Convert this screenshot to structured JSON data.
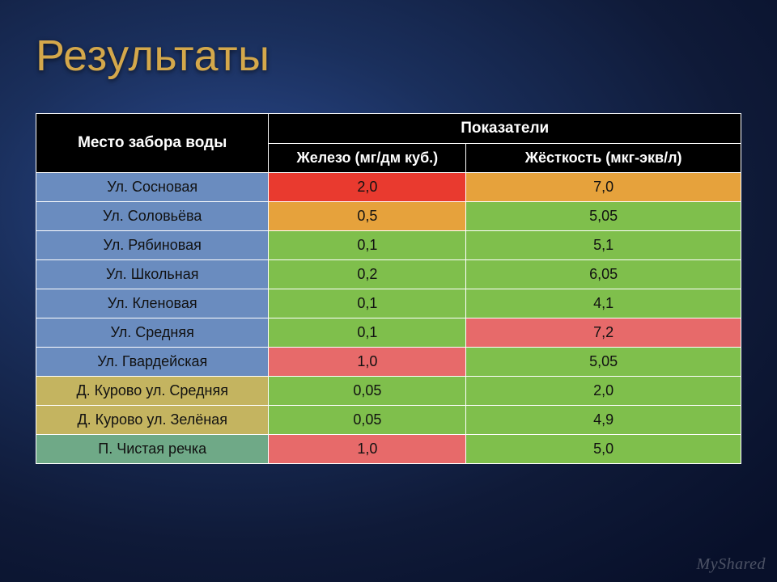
{
  "title": "Результаты",
  "watermark": "MyShared",
  "table": {
    "header": {
      "location": "Место забора воды",
      "indicators": "Показатели",
      "iron": "Железо (мг/дм куб.)",
      "hardness": "Жёсткость (мкг-экв/л)"
    },
    "location_palette": {
      "blue": "#6a8cbf",
      "yellow": "#c4b460",
      "bluegreen": "#6fa987"
    },
    "value_palette": {
      "red": "#e93a2f",
      "redlt": "#e76a6a",
      "orange": "#e6a23c",
      "green": "#7fbf4c"
    },
    "rows": [
      {
        "location": "Ул. Сосновая",
        "loc_class": "loc-blue",
        "iron": "2,0",
        "iron_class": "v-red",
        "hard": "7,0",
        "hard_class": "v-orange"
      },
      {
        "location": "Ул. Соловьёва",
        "loc_class": "loc-blue",
        "iron": "0,5",
        "iron_class": "v-orange",
        "hard": "5,05",
        "hard_class": "v-green"
      },
      {
        "location": "Ул. Рябиновая",
        "loc_class": "loc-blue",
        "iron": "0,1",
        "iron_class": "v-green",
        "hard": "5,1",
        "hard_class": "v-green"
      },
      {
        "location": "Ул. Школьная",
        "loc_class": "loc-blue",
        "iron": "0,2",
        "iron_class": "v-green",
        "hard": "6,05",
        "hard_class": "v-green"
      },
      {
        "location": "Ул. Кленовая",
        "loc_class": "loc-blue",
        "iron": "0,1",
        "iron_class": "v-green",
        "hard": "4,1",
        "hard_class": "v-green"
      },
      {
        "location": "Ул. Средняя",
        "loc_class": "loc-blue",
        "iron": "0,1",
        "iron_class": "v-green",
        "hard": "7,2",
        "hard_class": "v-redlt"
      },
      {
        "location": "Ул. Гвардейская",
        "loc_class": "loc-blue",
        "iron": "1,0",
        "iron_class": "v-redlt",
        "hard": "5,05",
        "hard_class": "v-green"
      },
      {
        "location": "Д. Курово ул. Средняя",
        "loc_class": "loc-yellow",
        "iron": "0,05",
        "iron_class": "v-green",
        "hard": "2,0",
        "hard_class": "v-green"
      },
      {
        "location": "Д. Курово ул. Зелёная",
        "loc_class": "loc-yellow",
        "iron": "0,05",
        "iron_class": "v-green",
        "hard": "4,9",
        "hard_class": "v-green"
      },
      {
        "location": "П. Чистая речка",
        "loc_class": "loc-bluegreen",
        "iron": "1,0",
        "iron_class": "v-redlt",
        "hard": "5,0",
        "hard_class": "v-green"
      }
    ]
  }
}
